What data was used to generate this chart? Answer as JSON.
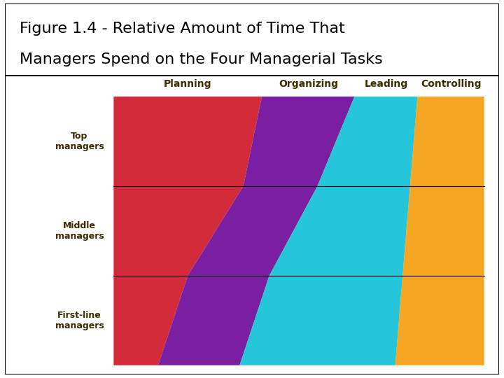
{
  "title_line1": "Figure 1.4 - Relative Amount of Time That",
  "title_line2": "Managers Spend on the Four Managerial Tasks",
  "bg_color": "#F5E6C8",
  "outer_bg": "#FFFFFF",
  "colors": {
    "Planning": "#D42B3A",
    "Organizing": "#7B1FA2",
    "Leading": "#26C6DA",
    "Controlling": "#F5A623"
  },
  "row_labels": [
    "Top\nmanagers",
    "Middle\nmanagers",
    "First-line\nmanagers"
  ],
  "col_labels": [
    "Planning",
    "Organizing",
    "Leading",
    "Controlling"
  ],
  "boundaries": [
    [
      0.0,
      0.4,
      0.65,
      0.82,
      1.0
    ],
    [
      0.0,
      0.35,
      0.55,
      0.8,
      1.0
    ],
    [
      0.0,
      0.2,
      0.42,
      0.78,
      1.0
    ],
    [
      0.0,
      0.12,
      0.34,
      0.76,
      1.0
    ]
  ],
  "label_fontsize": 10,
  "row_label_fontsize": 9,
  "title_fontsize": 16
}
